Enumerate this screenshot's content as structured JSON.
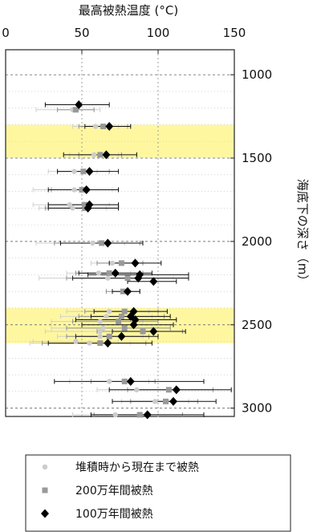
{
  "chart_data": {
    "type": "scatter",
    "title": "",
    "xlabel": "最高被熱温度 (°C)",
    "ylabel": "海底下の深さ（m）",
    "xlim": [
      0,
      150
    ],
    "ylim": [
      3050,
      850
    ],
    "x_ticks": [
      0,
      50,
      100,
      150
    ],
    "y_ticks": [
      1000,
      1500,
      2000,
      2500,
      3000
    ],
    "x_axis_position": "top",
    "y_axis_position": "right",
    "y_inverted": true,
    "grid": "dotted",
    "highlight_bands": [
      {
        "from": 1300,
        "to": 1500,
        "color": "#fff7a0"
      },
      {
        "from": 2400,
        "to": 2610,
        "color": "#fff7a0"
      }
    ],
    "legend_placement": "bottom",
    "series": [
      {
        "name": "堆積時から現在まで被熱",
        "marker": "circle",
        "color": "#cccccc",
        "points": [
          {
            "depth": 1210,
            "x": 44,
            "xerr": [
              20,
              62
            ]
          },
          {
            "depth": 1310,
            "x": 59,
            "xerr": [
              44,
              74
            ]
          },
          {
            "depth": 1480,
            "x": 58,
            "xerr": [
              42,
              74
            ]
          },
          {
            "depth": 1580,
            "x": 45,
            "xerr": [
              28,
              60
            ]
          },
          {
            "depth": 1690,
            "x": 45,
            "xerr": [
              18,
              70
            ]
          },
          {
            "depth": 1780,
            "x": 42,
            "xerr": [
              18,
              68
            ]
          },
          {
            "depth": 1800,
            "x": 44,
            "xerr": [
              22,
              66
            ]
          },
          {
            "depth": 2010,
            "x": 57,
            "xerr": [
              20,
              78
            ]
          },
          {
            "depth": 2130,
            "x": 70,
            "xerr": [
              56,
              84
            ]
          },
          {
            "depth": 2190,
            "x": 61,
            "xerr": [
              40,
              82
            ]
          },
          {
            "depth": 2220,
            "x": 67,
            "xerr": [
              22,
              110
            ]
          },
          {
            "depth": 2420,
            "x": 68,
            "xerr": [
              40,
              94
            ]
          },
          {
            "depth": 2450,
            "x": 66,
            "xerr": [
              36,
              96
            ]
          },
          {
            "depth": 2480,
            "x": 62,
            "xerr": [
              30,
              90
            ]
          },
          {
            "depth": 2520,
            "x": 64,
            "xerr": [
              30,
              96
            ]
          },
          {
            "depth": 2540,
            "x": 62,
            "xerr": [
              26,
              98
            ]
          },
          {
            "depth": 2570,
            "x": 62,
            "xerr": [
              34,
              90
            ]
          },
          {
            "depth": 2600,
            "x": 46,
            "xerr": [
              18,
              74
            ]
          },
          {
            "depth": 2610,
            "x": 55,
            "xerr": [
              16,
              82
            ]
          },
          {
            "depth": 2840,
            "x": 68,
            "xerr": [
              42,
              94
            ]
          },
          {
            "depth": 2890,
            "x": 86,
            "xerr": [
              60,
              112
            ]
          },
          {
            "depth": 2960,
            "x": 98,
            "xerr": [
              76,
              120
            ]
          },
          {
            "depth": 3040,
            "x": 72,
            "xerr": [
              44,
              100
            ]
          }
        ]
      },
      {
        "name": "200万年間被熱",
        "marker": "square",
        "color": "#999999",
        "points": [
          {
            "depth": 1210,
            "x": 46,
            "xerr": [
              34,
              58
            ]
          },
          {
            "depth": 1310,
            "x": 64,
            "xerr": [
              48,
              80
            ]
          },
          {
            "depth": 1480,
            "x": 62,
            "xerr": [
              48,
              76
            ]
          },
          {
            "depth": 1580,
            "x": 51,
            "xerr": [
              34,
              68
            ]
          },
          {
            "depth": 1690,
            "x": 50,
            "xerr": [
              30,
              74
            ]
          },
          {
            "depth": 1780,
            "x": 52,
            "xerr": [
              28,
              74
            ]
          },
          {
            "depth": 1800,
            "x": 52,
            "xerr": [
              26,
              74
            ]
          },
          {
            "depth": 2010,
            "x": 63,
            "xerr": [
              32,
              88
            ]
          },
          {
            "depth": 2130,
            "x": 76,
            "xerr": [
              60,
              90
            ]
          },
          {
            "depth": 2190,
            "x": 68,
            "xerr": [
              46,
              90
            ]
          },
          {
            "depth": 2220,
            "x": 80,
            "xerr": [
              40,
              120
            ]
          },
          {
            "depth": 2300,
            "x": 77,
            "xerr": [
              66,
              88
            ]
          },
          {
            "depth": 2420,
            "x": 78,
            "xerr": [
              52,
              100
            ]
          },
          {
            "depth": 2450,
            "x": 76,
            "xerr": [
              48,
              104
            ]
          },
          {
            "depth": 2480,
            "x": 74,
            "xerr": [
              44,
              100
            ]
          },
          {
            "depth": 2520,
            "x": 78,
            "xerr": [
              40,
              108
            ]
          },
          {
            "depth": 2540,
            "x": 90,
            "xerr": [
              60,
              116
            ]
          },
          {
            "depth": 2570,
            "x": 68,
            "xerr": [
              40,
              94
            ]
          },
          {
            "depth": 2610,
            "x": 62,
            "xerr": [
              24,
              92
            ]
          },
          {
            "depth": 2840,
            "x": 78,
            "xerr": [
              56,
              98
            ]
          },
          {
            "depth": 2890,
            "x": 107,
            "xerr": [
              80,
              136
            ]
          },
          {
            "depth": 2960,
            "x": 105,
            "xerr": [
              82,
              126
            ]
          },
          {
            "depth": 3040,
            "x": 88,
            "xerr": [
              58,
              116
            ]
          }
        ]
      },
      {
        "name": "100万年間被熱",
        "marker": "diamond",
        "color": "#000000",
        "points": [
          {
            "depth": 1180,
            "x": 48,
            "xerr": [
              26,
              68
            ]
          },
          {
            "depth": 1310,
            "x": 68,
            "xerr": [
              52,
              82
            ]
          },
          {
            "depth": 1480,
            "x": 66,
            "xerr": [
              38,
              86
            ]
          },
          {
            "depth": 1580,
            "x": 55,
            "xerr": [
              34,
              74
            ]
          },
          {
            "depth": 1690,
            "x": 53,
            "xerr": [
              28,
              74
            ]
          },
          {
            "depth": 1780,
            "x": 55,
            "xerr": [
              28,
              74
            ]
          },
          {
            "depth": 1800,
            "x": 54,
            "xerr": [
              28,
              74
            ]
          },
          {
            "depth": 2010,
            "x": 67,
            "xerr": [
              36,
              90
            ]
          },
          {
            "depth": 2130,
            "x": 85,
            "xerr": [
              68,
              102
            ]
          },
          {
            "depth": 2190,
            "x": 72,
            "xerr": [
              48,
              96
            ]
          },
          {
            "depth": 2200,
            "x": 88,
            "xerr": [
              54,
              120
            ]
          },
          {
            "depth": 2220,
            "x": 87,
            "xerr": [
              44,
              120
            ]
          },
          {
            "depth": 2240,
            "x": 97,
            "xerr": [
              80,
              112
            ]
          },
          {
            "depth": 2300,
            "x": 80,
            "xerr": [
              70,
              88
            ]
          },
          {
            "depth": 2420,
            "x": 84,
            "xerr": [
              58,
              106
            ]
          },
          {
            "depth": 2450,
            "x": 82,
            "xerr": [
              56,
              108
            ]
          },
          {
            "depth": 2470,
            "x": 85,
            "xerr": [
              46,
              112
            ]
          },
          {
            "depth": 2500,
            "x": 84,
            "xerr": [
              50,
              110
            ]
          },
          {
            "depth": 2540,
            "x": 97,
            "xerr": [
              70,
              118
            ]
          },
          {
            "depth": 2570,
            "x": 76,
            "xerr": [
              46,
              100
            ]
          },
          {
            "depth": 2610,
            "x": 67,
            "xerr": [
              28,
              96
            ]
          },
          {
            "depth": 2840,
            "x": 82,
            "xerr": [
              32,
              130
            ]
          },
          {
            "depth": 2890,
            "x": 112,
            "xerr": [
              68,
              148
            ]
          },
          {
            "depth": 2960,
            "x": 110,
            "xerr": [
              70,
              138
            ]
          },
          {
            "depth": 3040,
            "x": 93,
            "xerr": [
              56,
              130
            ]
          }
        ]
      }
    ]
  }
}
